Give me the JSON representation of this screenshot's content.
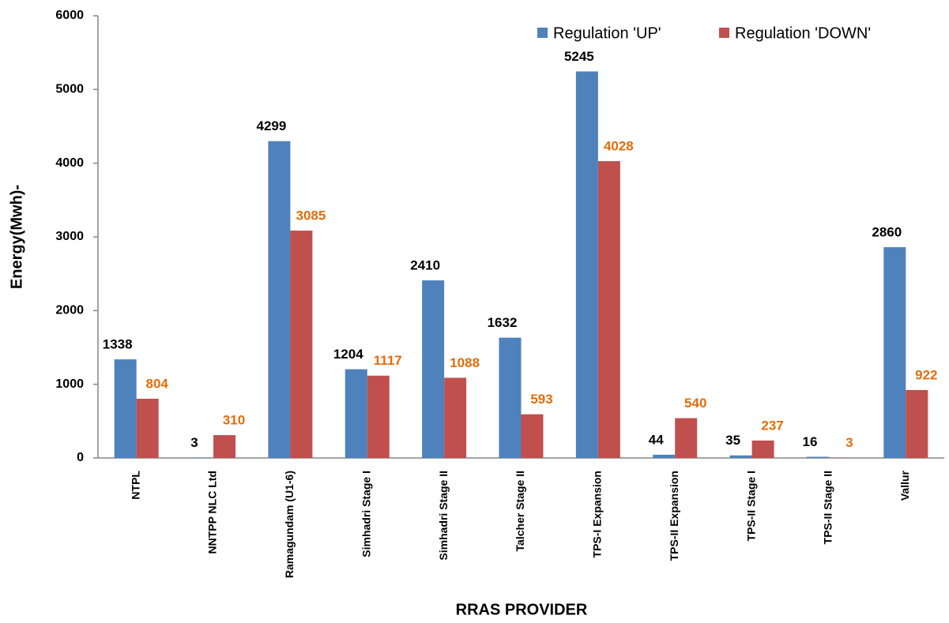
{
  "chart_data": {
    "type": "bar",
    "x_label": "RRAS PROVIDER",
    "y_label": "Energy(Mwh)-",
    "categories": [
      "NTPL",
      "NNTPP NLC Ltd",
      "Ramagundam (U1-6)",
      "Simhadri  Stage I",
      "Simhadri Stage II",
      "Talcher Stage II",
      "TPS-I Expansion",
      "TPS-II Expansion",
      "TPS-II Stage I",
      "TPS-II Stage II",
      "Vallur"
    ],
    "series": [
      {
        "name": "Regulation 'UP'",
        "color": "#4f81bd",
        "label_color": "#000000",
        "values": [
          1338,
          3,
          4299,
          1204,
          2410,
          1632,
          5245,
          44,
          35,
          16,
          2860
        ]
      },
      {
        "name": "Regulation 'DOWN'",
        "color": "#c0504d",
        "label_color": "#e46c0a",
        "values": [
          804,
          310,
          3085,
          1117,
          1088,
          593,
          4028,
          540,
          237,
          3,
          922
        ]
      }
    ],
    "ylim": [
      0,
      6000
    ],
    "yticks": [
      0,
      1000,
      2000,
      3000,
      4000,
      5000,
      6000
    ],
    "grid": false,
    "legend": "top-right"
  }
}
